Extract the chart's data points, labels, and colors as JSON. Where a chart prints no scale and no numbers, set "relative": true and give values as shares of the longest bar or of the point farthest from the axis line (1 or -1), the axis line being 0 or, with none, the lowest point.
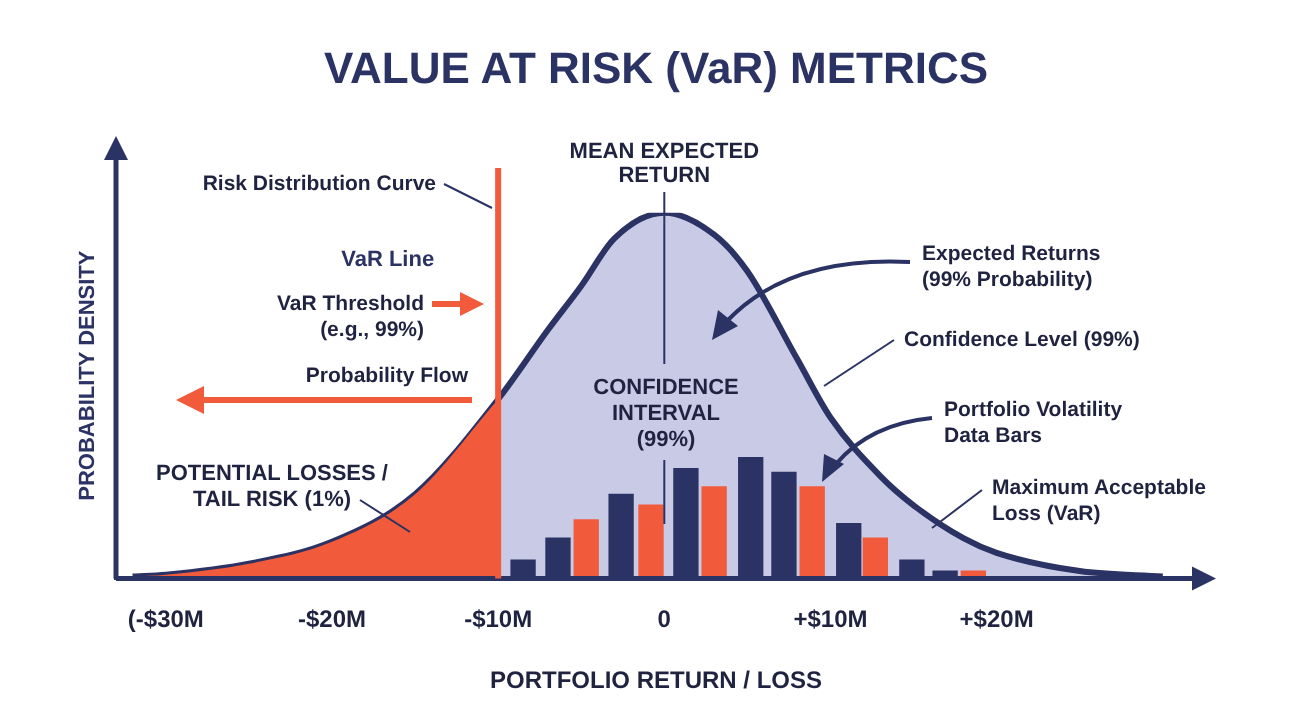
{
  "chart_data": {
    "type": "area",
    "title": "VALUE AT RISK (VaR) METRICS",
    "xlabel": "PORTFOLIO RETURN / LOSS",
    "ylabel": "PROBABILITY DENSITY",
    "relative": true,
    "xlim": [
      -33,
      32
    ],
    "xticks": [
      {
        "value": -30,
        "label": "(-$30M"
      },
      {
        "value": -20,
        "label": "-$20M"
      },
      {
        "value": -10,
        "label": "-$10M"
      },
      0,
      {
        "value": 10,
        "label": "+$10M"
      },
      {
        "value": 20,
        "label": "+$20M"
      }
    ],
    "series": [
      {
        "color": "#c9cbe6",
        "x": [
          -32,
          -30,
          -25,
          -20,
          -15,
          -10,
          -7,
          -5,
          -3,
          0,
          3,
          5,
          8,
          10,
          13,
          15,
          18,
          20,
          25,
          30
        ],
        "values": [
          0.005,
          0.01,
          0.04,
          0.1,
          0.23,
          0.49,
          0.68,
          0.8,
          0.93,
          1,
          0.94,
          0.84,
          0.6,
          0.44,
          0.28,
          0.2,
          0.11,
          0.07,
          0.02,
          0.005
        ]
      },
      {
        "color": "#f15a3a",
        "x": [
          -32,
          -30,
          -25,
          -20,
          -15,
          -10
        ],
        "values": [
          0.005,
          0.01,
          0.04,
          0.1,
          0.23,
          0.49
        ]
      },
      {
        "type": "bar",
        "color": "#2b3264",
        "x": [
          -8.5,
          -6.4,
          -2.6,
          1.3,
          5.2,
          7.2,
          11.1,
          14.9,
          16.9
        ],
        "values": [
          0.05,
          0.11,
          0.23,
          0.3,
          0.33,
          0.29,
          0.15,
          0.05,
          0.02
        ]
      },
      {
        "type": "bar",
        "color": "#f15a3a",
        "x": [
          -4.7,
          -0.8,
          3,
          8.9,
          12.7,
          18.6
        ],
        "values": [
          0.16,
          0.2,
          0.25,
          0.25,
          0.11,
          0.02
        ]
      }
    ],
    "ref_lines": [
      {
        "axis": "x",
        "value": -10,
        "label": "VaR Line",
        "color": "#f15a3a"
      },
      {
        "axis": "x",
        "value": 0,
        "label": "MEAN EXPECTED RETURN",
        "color": "#2b3264"
      }
    ],
    "annotations": [
      "Risk Distribution Curve",
      "VaR Threshold (e.g., 99%)",
      "Probability Flow",
      "POTENTIAL LOSSES / TAIL RISK (1%)",
      "CONFIDENCE INTERVAL (99%)",
      "Expected Returns (99% Probability)",
      "Confidence Level (99%)",
      "Portfolio Volatility Data Bars",
      "Maximum Acceptable Loss (VaR)"
    ]
  }
}
